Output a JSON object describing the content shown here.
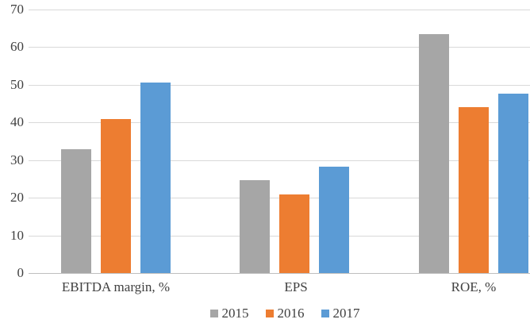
{
  "chart_data": {
    "type": "bar",
    "title": "",
    "xlabel": "",
    "ylabel": "",
    "categories": [
      "EBITDA margin, %",
      "EPS",
      "ROE, %"
    ],
    "series": [
      {
        "name": "2015",
        "color": "#a6a6a6",
        "values": [
          32.9,
          24.6,
          63.5
        ]
      },
      {
        "name": "2016",
        "color": "#ed7d31",
        "values": [
          41.0,
          20.9,
          44.0
        ]
      },
      {
        "name": "2017",
        "color": "#5b9bd5",
        "values": [
          50.7,
          28.3,
          47.6
        ]
      }
    ],
    "ylim": [
      0,
      70
    ],
    "yticks": [
      0,
      10,
      20,
      30,
      40,
      50,
      60,
      70
    ],
    "grid": true,
    "legend_position": "bottom"
  },
  "colors": {
    "gridline": "#d9d9d9",
    "baseline": "#bfbfbf",
    "text": "#404040"
  }
}
